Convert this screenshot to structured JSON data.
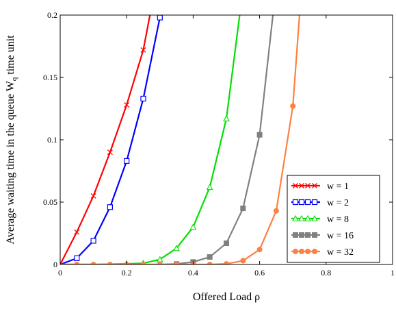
{
  "chart_data": {
    "type": "line",
    "title": "",
    "xlabel": "Offered Load  ρ",
    "ylabel_main": "Average waiting time in the queue W",
    "ylabel_sub": "q",
    "ylabel_tail": " time unit",
    "xlim": [
      0,
      1
    ],
    "ylim": [
      0,
      0.2
    ],
    "x_ticks": [
      0,
      0.2,
      0.4,
      0.6,
      0.8,
      1
    ],
    "x_tick_labels": [
      "0",
      "0.2",
      "0.4",
      "0.6",
      "0.8",
      "1"
    ],
    "y_ticks": [
      0,
      0.05,
      0.1,
      0.15,
      0.2
    ],
    "y_tick_labels": [
      "0",
      "0.05",
      "0.1",
      "0.15",
      "0.2"
    ],
    "grid": false,
    "legend_position": "bottom-right",
    "series": [
      {
        "name": "w = 1",
        "color": "#ff0000",
        "marker": "x",
        "line": [
          [
            0,
            0
          ],
          [
            0.05,
            0.026
          ],
          [
            0.1,
            0.055
          ],
          [
            0.15,
            0.09
          ],
          [
            0.2,
            0.128
          ],
          [
            0.25,
            0.172
          ],
          [
            0.27,
            0.2
          ]
        ],
        "markers": [
          [
            0.05,
            0.026
          ],
          [
            0.1,
            0.055
          ],
          [
            0.15,
            0.09
          ],
          [
            0.2,
            0.128
          ],
          [
            0.25,
            0.172
          ]
        ]
      },
      {
        "name": "w = 2",
        "color": "#0000ff",
        "marker": "square-open",
        "line": [
          [
            0,
            0
          ],
          [
            0.05,
            0.005
          ],
          [
            0.1,
            0.019
          ],
          [
            0.15,
            0.046
          ],
          [
            0.2,
            0.083
          ],
          [
            0.25,
            0.133
          ],
          [
            0.3,
            0.198
          ]
        ],
        "markers": [
          [
            0.05,
            0.005
          ],
          [
            0.1,
            0.019
          ],
          [
            0.15,
            0.046
          ],
          [
            0.2,
            0.083
          ],
          [
            0.25,
            0.133
          ],
          [
            0.3,
            0.198
          ]
        ]
      },
      {
        "name": "w = 8",
        "color": "#00e000",
        "marker": "triangle-open",
        "line": [
          [
            0,
            0
          ],
          [
            0.1,
            0
          ],
          [
            0.2,
            0.0005
          ],
          [
            0.25,
            0.001
          ],
          [
            0.3,
            0.004
          ],
          [
            0.35,
            0.013
          ],
          [
            0.4,
            0.03
          ],
          [
            0.45,
            0.062
          ],
          [
            0.5,
            0.117
          ],
          [
            0.54,
            0.2
          ]
        ],
        "markers": [
          [
            0.2,
            0.0005
          ],
          [
            0.25,
            0.001
          ],
          [
            0.3,
            0.004
          ],
          [
            0.35,
            0.013
          ],
          [
            0.4,
            0.03
          ],
          [
            0.45,
            0.062
          ],
          [
            0.5,
            0.117
          ]
        ]
      },
      {
        "name": "w = 16",
        "color": "#808080",
        "marker": "square-filled",
        "line": [
          [
            0,
            0
          ],
          [
            0.3,
            0
          ],
          [
            0.35,
            0.0004
          ],
          [
            0.4,
            0.002
          ],
          [
            0.45,
            0.006
          ],
          [
            0.5,
            0.017
          ],
          [
            0.55,
            0.045
          ],
          [
            0.6,
            0.104
          ],
          [
            0.64,
            0.2
          ]
        ],
        "markers": [
          [
            0.35,
            0.0004
          ],
          [
            0.4,
            0.002
          ],
          [
            0.45,
            0.006
          ],
          [
            0.5,
            0.017
          ],
          [
            0.55,
            0.045
          ],
          [
            0.6,
            0.104
          ]
        ]
      },
      {
        "name": "w = 32",
        "color": "#ff8040",
        "marker": "circle-filled",
        "line": [
          [
            0,
            0
          ],
          [
            0.45,
            0
          ],
          [
            0.5,
            0.0005
          ],
          [
            0.55,
            0.003
          ],
          [
            0.6,
            0.012
          ],
          [
            0.65,
            0.043
          ],
          [
            0.7,
            0.127
          ],
          [
            0.72,
            0.2
          ]
        ],
        "markers": [
          [
            0.05,
            0
          ],
          [
            0.1,
            0
          ],
          [
            0.15,
            0
          ],
          [
            0.2,
            0
          ],
          [
            0.25,
            0
          ],
          [
            0.3,
            0
          ],
          [
            0.35,
            0
          ],
          [
            0.4,
            0
          ],
          [
            0.45,
            0
          ],
          [
            0.5,
            0.0005
          ],
          [
            0.55,
            0.003
          ],
          [
            0.6,
            0.012
          ],
          [
            0.65,
            0.043
          ],
          [
            0.7,
            0.127
          ]
        ]
      }
    ]
  }
}
